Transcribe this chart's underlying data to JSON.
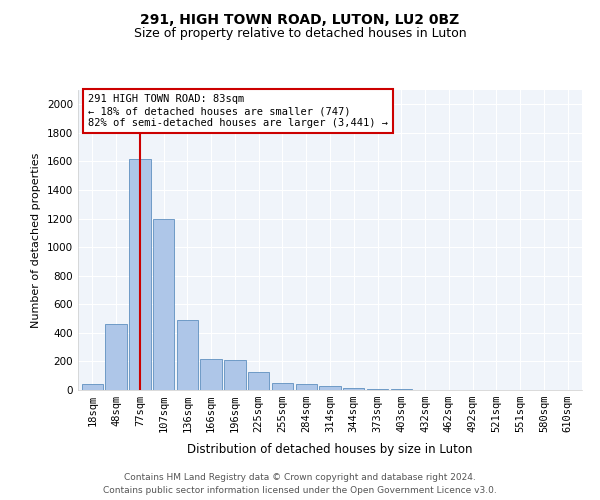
{
  "title1": "291, HIGH TOWN ROAD, LUTON, LU2 0BZ",
  "title2": "Size of property relative to detached houses in Luton",
  "xlabel": "Distribution of detached houses by size in Luton",
  "ylabel": "Number of detached properties",
  "categories": [
    "18sqm",
    "48sqm",
    "77sqm",
    "107sqm",
    "136sqm",
    "166sqm",
    "196sqm",
    "225sqm",
    "255sqm",
    "284sqm",
    "314sqm",
    "344sqm",
    "373sqm",
    "403sqm",
    "432sqm",
    "462sqm",
    "492sqm",
    "521sqm",
    "551sqm",
    "580sqm",
    "610sqm"
  ],
  "values": [
    40,
    460,
    1620,
    1200,
    490,
    215,
    210,
    125,
    50,
    40,
    25,
    15,
    5,
    5,
    3,
    2,
    1,
    1,
    0,
    0,
    0
  ],
  "bar_color": "#aec6e8",
  "bar_edge_color": "#6090c0",
  "vline_x_index": 2,
  "vline_color": "#cc0000",
  "annotation_text": "291 HIGH TOWN ROAD: 83sqm\n← 18% of detached houses are smaller (747)\n82% of semi-detached houses are larger (3,441) →",
  "annotation_box_color": "#ffffff",
  "annotation_box_edge_color": "#cc0000",
  "ylim": [
    0,
    2100
  ],
  "yticks": [
    0,
    200,
    400,
    600,
    800,
    1000,
    1200,
    1400,
    1600,
    1800,
    2000
  ],
  "footer_line1": "Contains HM Land Registry data © Crown copyright and database right 2024.",
  "footer_line2": "Contains public sector information licensed under the Open Government Licence v3.0.",
  "bg_color": "#ffffff",
  "plot_bg_color": "#f0f4fa",
  "grid_color": "#ffffff",
  "title1_fontsize": 10,
  "title2_fontsize": 9,
  "xlabel_fontsize": 8.5,
  "ylabel_fontsize": 8,
  "tick_fontsize": 7.5,
  "footer_fontsize": 6.5,
  "annotation_fontsize": 7.5
}
